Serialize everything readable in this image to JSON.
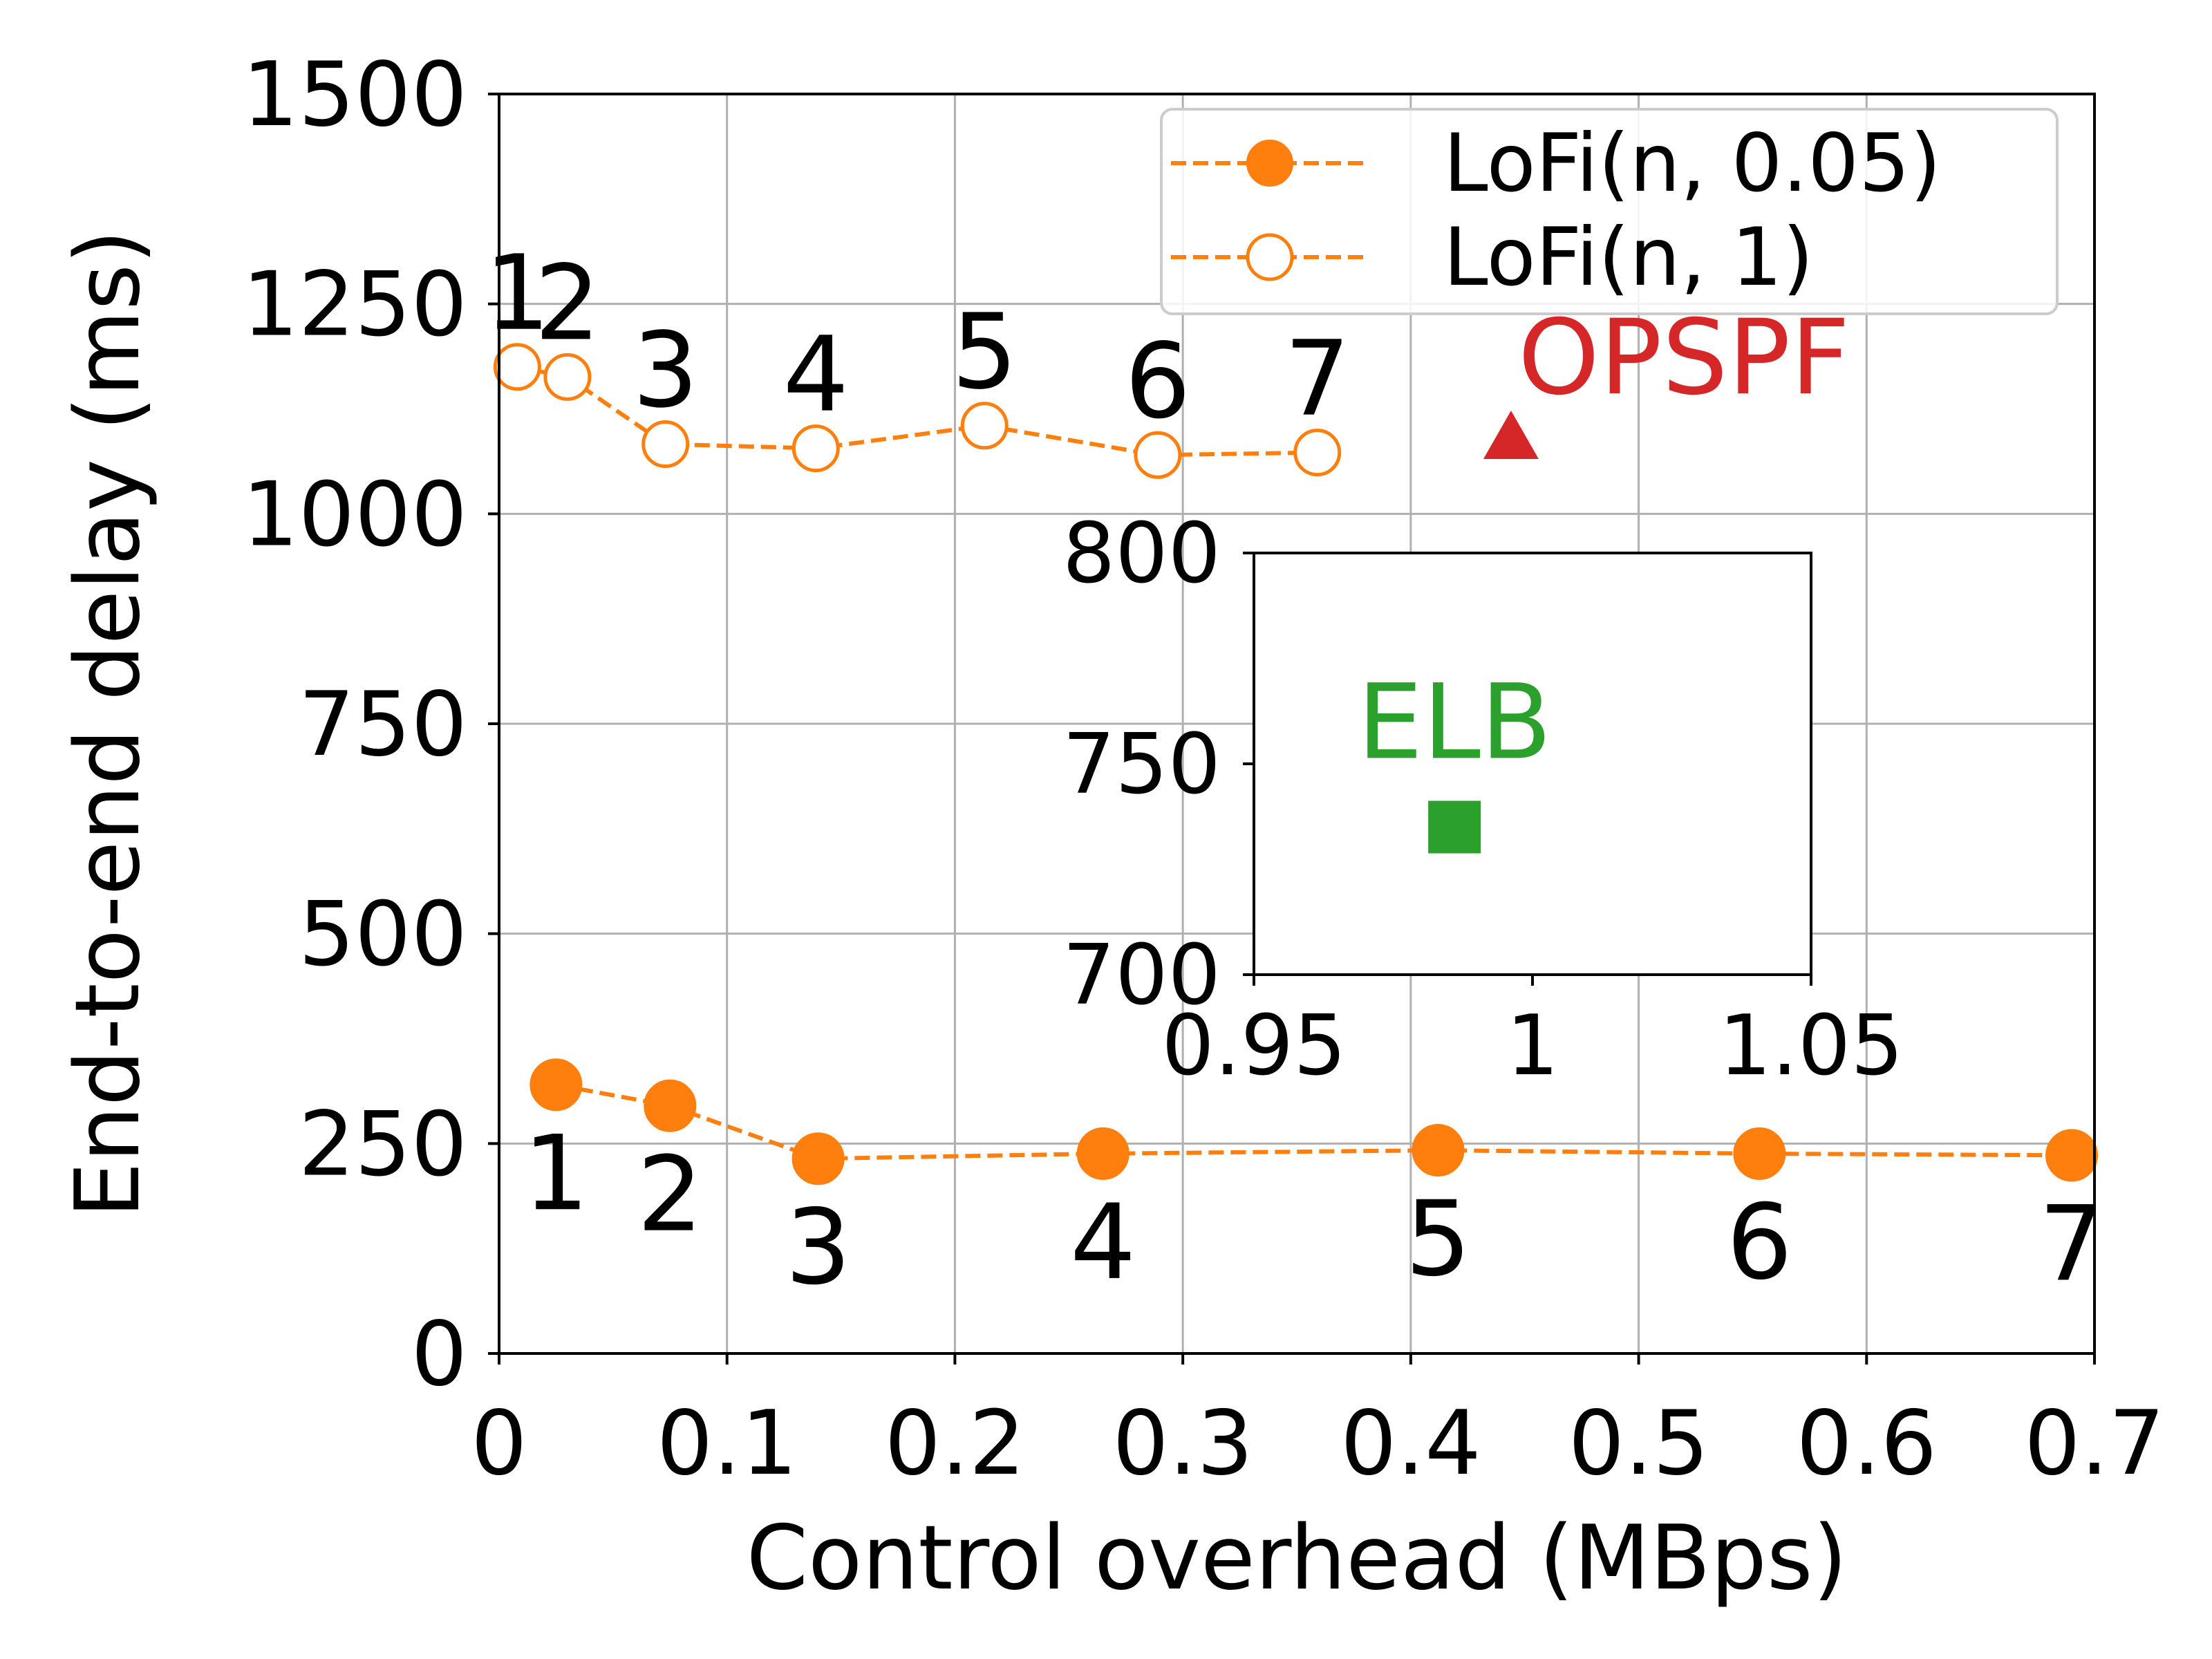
{
  "chart_data": [
    {
      "type": "line",
      "xlabel": "Control overhead (MBps)",
      "ylabel": "End-to-end delay (ms)",
      "xlim": [
        0,
        0.7
      ],
      "ylim": [
        0,
        1500
      ],
      "xticks": [
        0,
        0.1,
        0.2,
        0.3,
        0.4,
        0.5,
        0.6,
        0.7
      ],
      "xtick_labels": [
        "0",
        "0.1",
        "0.2",
        "0.3",
        "0.4",
        "0.5",
        "0.6",
        "0.7"
      ],
      "yticks": [
        0,
        250,
        500,
        750,
        1000,
        1250,
        1500
      ],
      "ytick_labels": [
        "0",
        "250",
        "500",
        "750",
        "1000",
        "1250",
        "1500"
      ],
      "grid": true,
      "legend_position": "top-right",
      "series": [
        {
          "name": "LoFi(n, 0.05)",
          "color": "#ff7f0e",
          "marker": "filled-circle",
          "linestyle": "dashed",
          "points": [
            {
              "x": 0.025,
              "y": 320,
              "label": "1"
            },
            {
              "x": 0.075,
              "y": 295,
              "label": "2"
            },
            {
              "x": 0.14,
              "y": 232,
              "label": "3"
            },
            {
              "x": 0.265,
              "y": 238,
              "label": "4"
            },
            {
              "x": 0.412,
              "y": 242,
              "label": "5"
            },
            {
              "x": 0.553,
              "y": 238,
              "label": "6"
            },
            {
              "x": 0.69,
              "y": 236,
              "label": "7"
            }
          ]
        },
        {
          "name": "LoFi(n, 1)",
          "color": "#ff7f0e",
          "marker": "open-circle",
          "linestyle": "dashed",
          "points": [
            {
              "x": 0.008,
              "y": 1175,
              "label": "1"
            },
            {
              "x": 0.03,
              "y": 1163,
              "label": "2"
            },
            {
              "x": 0.073,
              "y": 1083,
              "label": "3"
            },
            {
              "x": 0.139,
              "y": 1078,
              "label": "4"
            },
            {
              "x": 0.213,
              "y": 1105,
              "label": "5"
            },
            {
              "x": 0.289,
              "y": 1070,
              "label": "6"
            },
            {
              "x": 0.359,
              "y": 1073,
              "label": "7"
            }
          ]
        }
      ],
      "annotations": [
        {
          "text": "OPSPF",
          "x": 0.444,
          "y": 1090,
          "marker": "triangle",
          "color": "#d62728"
        }
      ]
    },
    {
      "type": "scatter",
      "role": "inset",
      "xlim": [
        0.95,
        1.05
      ],
      "ylim": [
        700,
        800
      ],
      "xticks": [
        0.95,
        1,
        1.05
      ],
      "xtick_labels": [
        "0.95",
        "1",
        "1.05"
      ],
      "yticks": [
        700,
        750,
        800
      ],
      "ytick_labels": [
        "700",
        "750",
        "800"
      ],
      "grid": false,
      "points": [
        {
          "x": 0.986,
          "y": 735,
          "label": "ELB",
          "marker": "square",
          "color": "#2ca02c"
        }
      ]
    }
  ]
}
